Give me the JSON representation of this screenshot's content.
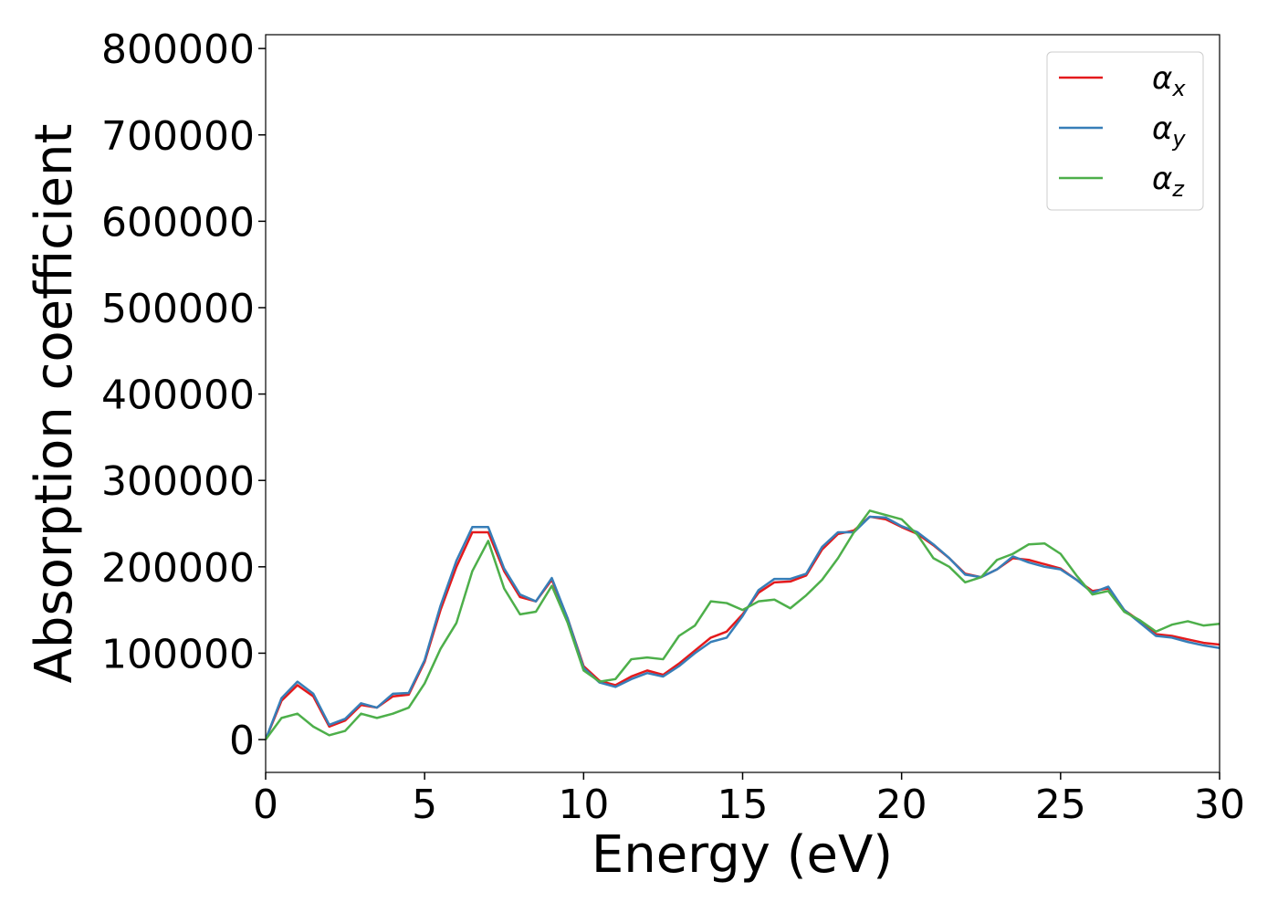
{
  "chart_data": {
    "type": "line",
    "xlabel": "Energy (eV)",
    "ylabel": "Absorption coefficient",
    "x": [
      0,
      0.5,
      1,
      1.5,
      2,
      2.5,
      3,
      3.5,
      4,
      4.5,
      5,
      5.5,
      6,
      6.5,
      7,
      7.5,
      8,
      8.5,
      9,
      9.5,
      10,
      10.5,
      11,
      11.5,
      12,
      12.5,
      13,
      13.5,
      14,
      14.5,
      15,
      15.5,
      16,
      16.5,
      17,
      17.5,
      18,
      18.5,
      19,
      19.5,
      20,
      20.5,
      21,
      21.5,
      22,
      22.5,
      23,
      23.5,
      24,
      24.5,
      25,
      25.5,
      26,
      26.5,
      27,
      27.5,
      28,
      28.5,
      29,
      29.5,
      30
    ],
    "series": [
      {
        "name": "αx",
        "color": "#e41a1c",
        "values": [
          0,
          45000,
          63000,
          50000,
          15000,
          22000,
          40000,
          37000,
          50000,
          52000,
          90000,
          150000,
          200000,
          240000,
          240000,
          195000,
          165000,
          160000,
          185000,
          140000,
          85000,
          68000,
          63000,
          73000,
          80000,
          75000,
          88000,
          103000,
          118000,
          125000,
          145000,
          170000,
          182000,
          183000,
          190000,
          220000,
          238000,
          242000,
          258000,
          255000,
          246000,
          238000,
          225000,
          210000,
          192000,
          188000,
          197000,
          210000,
          208000,
          203000,
          198000,
          185000,
          172000,
          175000,
          150000,
          137000,
          122000,
          120000,
          116000,
          112000,
          110000
        ]
      },
      {
        "name": "αy",
        "color": "#377eb8",
        "values": [
          0,
          48000,
          67000,
          53000,
          17000,
          24000,
          42000,
          37000,
          53000,
          54000,
          92000,
          155000,
          207000,
          246000,
          246000,
          198000,
          168000,
          160000,
          187000,
          140000,
          83000,
          66000,
          61000,
          70000,
          77000,
          73000,
          85000,
          100000,
          113000,
          118000,
          143000,
          173000,
          186000,
          186000,
          192000,
          223000,
          240000,
          240000,
          258000,
          257000,
          247000,
          240000,
          226000,
          210000,
          191000,
          188000,
          197000,
          212000,
          205000,
          200000,
          197000,
          185000,
          170000,
          177000,
          150000,
          135000,
          120000,
          118000,
          113000,
          109000,
          106000
        ]
      },
      {
        "name": "αz",
        "color": "#4daf4a",
        "values": [
          0,
          25000,
          30000,
          15000,
          5000,
          10000,
          30000,
          25000,
          30000,
          37000,
          65000,
          105000,
          135000,
          195000,
          230000,
          175000,
          145000,
          148000,
          178000,
          135000,
          80000,
          67000,
          70000,
          93000,
          95000,
          93000,
          120000,
          132000,
          160000,
          158000,
          150000,
          160000,
          162000,
          152000,
          167000,
          185000,
          210000,
          240000,
          265000,
          260000,
          255000,
          237000,
          210000,
          200000,
          182000,
          188000,
          208000,
          215000,
          226000,
          227000,
          215000,
          190000,
          168000,
          172000,
          148000,
          138000,
          125000,
          133000,
          137000,
          132000,
          134000
        ]
      }
    ],
    "xlim": [
      0,
      30
    ],
    "xticks": [
      0,
      5,
      10,
      15,
      20,
      25,
      30
    ],
    "ylim": [
      -38000,
      816000
    ],
    "yticks": [
      0,
      100000,
      200000,
      300000,
      400000,
      500000,
      600000,
      700000,
      800000
    ],
    "legend": "upper right",
    "grid": false
  }
}
